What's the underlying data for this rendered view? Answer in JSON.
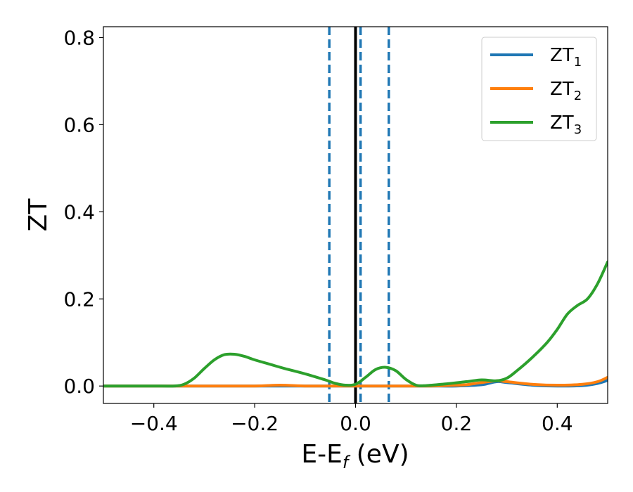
{
  "chart_data": {
    "type": "line",
    "xlabel_main": "E-E",
    "xlabel_sub": "f",
    "xlabel_unit": " (eV)",
    "ylabel": "ZT",
    "xlim": [
      -0.5,
      0.5
    ],
    "ylim": [
      -0.04,
      0.825
    ],
    "xticks": [
      -0.4,
      -0.2,
      0.0,
      0.2,
      0.4
    ],
    "xtick_labels": [
      "−0.4",
      "−0.2",
      "0.0",
      "0.2",
      "0.4"
    ],
    "yticks": [
      0.0,
      0.2,
      0.4,
      0.6,
      0.8
    ],
    "ytick_labels": [
      "0.0",
      "0.2",
      "0.4",
      "0.6",
      "0.8"
    ],
    "grid": false,
    "legend_position": "top-right",
    "series": [
      {
        "name_main": "ZT",
        "name_sub": "1",
        "color": "#1f77b4",
        "x": [
          -0.5,
          -0.4,
          -0.35,
          -0.3,
          -0.2,
          -0.1,
          -0.05,
          0.0,
          0.05,
          0.1,
          0.15,
          0.2,
          0.25,
          0.28,
          0.3,
          0.35,
          0.4,
          0.45,
          0.48,
          0.5
        ],
        "y": [
          0.0,
          0.0,
          0.0,
          0.0,
          0.0,
          0.0,
          0.0,
          0.0,
          0.0,
          0.0,
          0.0,
          0.0,
          0.003,
          0.01,
          0.008,
          0.002,
          0.0,
          0.001,
          0.006,
          0.013
        ]
      },
      {
        "name_main": "ZT",
        "name_sub": "2",
        "color": "#ff7f0e",
        "x": [
          -0.5,
          -0.4,
          -0.35,
          -0.3,
          -0.2,
          -0.15,
          -0.1,
          -0.05,
          0.0,
          0.05,
          0.1,
          0.15,
          0.2,
          0.22,
          0.25,
          0.28,
          0.3,
          0.35,
          0.4,
          0.45,
          0.48,
          0.5
        ],
        "y": [
          0.0,
          0.0,
          0.0,
          0.0,
          0.0,
          0.002,
          0.0,
          0.0,
          0.0,
          0.0,
          0.0,
          0.0,
          0.002,
          0.003,
          0.008,
          0.012,
          0.01,
          0.004,
          0.002,
          0.004,
          0.01,
          0.02
        ]
      },
      {
        "name_main": "ZT",
        "name_sub": "3",
        "color": "#2ca02c",
        "x": [
          -0.5,
          -0.45,
          -0.4,
          -0.36,
          -0.34,
          -0.32,
          -0.3,
          -0.28,
          -0.26,
          -0.24,
          -0.22,
          -0.2,
          -0.17,
          -0.14,
          -0.1,
          -0.06,
          -0.04,
          -0.02,
          0.0,
          0.02,
          0.04,
          0.06,
          0.08,
          0.1,
          0.12,
          0.14,
          0.18,
          0.22,
          0.25,
          0.28,
          0.3,
          0.32,
          0.35,
          0.38,
          0.4,
          0.42,
          0.44,
          0.46,
          0.48,
          0.5
        ],
        "y": [
          0.0,
          0.0,
          0.0,
          0.0,
          0.004,
          0.018,
          0.04,
          0.06,
          0.072,
          0.073,
          0.068,
          0.06,
          0.05,
          0.04,
          0.028,
          0.014,
          0.006,
          0.002,
          0.004,
          0.02,
          0.038,
          0.043,
          0.035,
          0.015,
          0.002,
          0.001,
          0.005,
          0.01,
          0.014,
          0.012,
          0.018,
          0.035,
          0.065,
          0.1,
          0.13,
          0.165,
          0.185,
          0.2,
          0.235,
          0.285
        ]
      }
    ],
    "vlines": [
      {
        "x": -0.052,
        "style": "dashed",
        "color": "#1f77b4"
      },
      {
        "x": 0.0,
        "style": "solid",
        "color": "#000000"
      },
      {
        "x": 0.01,
        "style": "dashed",
        "color": "#1f77b4"
      },
      {
        "x": 0.066,
        "style": "dashed",
        "color": "#1f77b4"
      }
    ]
  }
}
